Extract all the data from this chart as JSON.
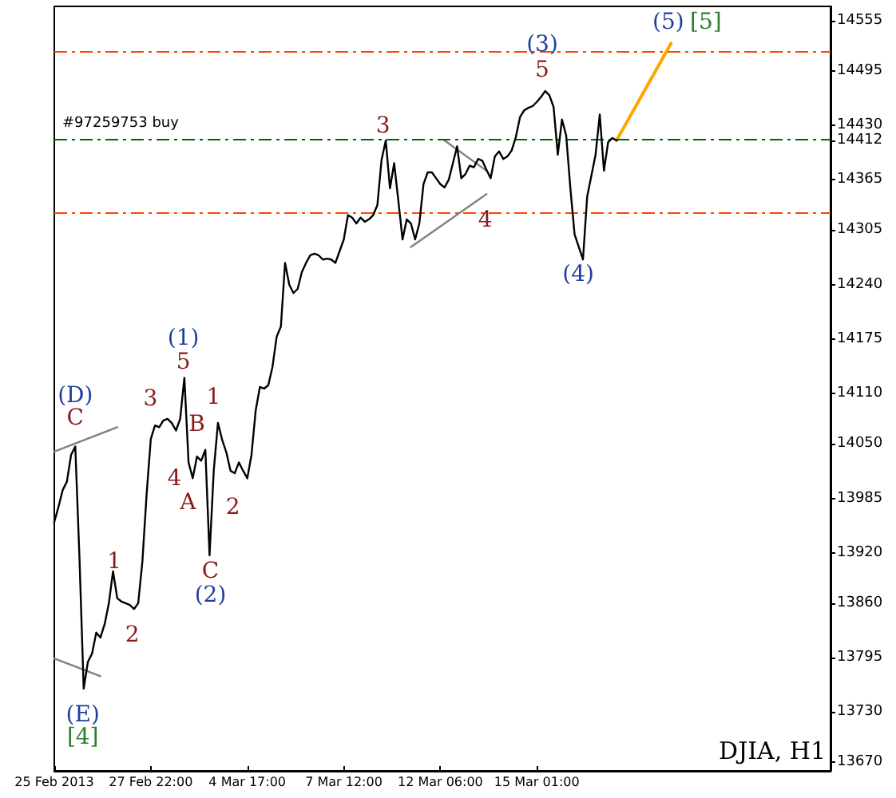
{
  "chart_data": {
    "type": "line",
    "ylim": [
      13660,
      14572
    ],
    "grid": false,
    "marker": "none",
    "categories": [
      "25 Feb 2013",
      null,
      null,
      null,
      null,
      null,
      null,
      null,
      null,
      null,
      null,
      null,
      null,
      null,
      null,
      null,
      null,
      null,
      null,
      null,
      null,
      null,
      null,
      "27 Feb 22:00",
      null,
      null,
      null,
      null,
      null,
      null,
      null,
      null,
      null,
      null,
      null,
      null,
      null,
      null,
      null,
      null,
      null,
      null,
      null,
      null,
      null,
      null,
      "4 Mar 17:00",
      null,
      null,
      null,
      null,
      null,
      null,
      null,
      null,
      null,
      null,
      null,
      null,
      null,
      null,
      null,
      null,
      null,
      null,
      null,
      null,
      null,
      null,
      "7 Mar 12:00",
      null,
      null,
      null,
      null,
      null,
      null,
      null,
      null,
      null,
      null,
      null,
      null,
      null,
      null,
      null,
      null,
      null,
      null,
      null,
      null,
      null,
      null,
      "12 Mar 06:00",
      null,
      null,
      null,
      null,
      null,
      null,
      null,
      null,
      null,
      null,
      null,
      null,
      null,
      null,
      null,
      null,
      null,
      null,
      null,
      null,
      null,
      null,
      "15 Mar 01:00",
      null,
      null,
      null,
      null,
      null,
      null,
      null,
      null,
      null,
      null,
      null,
      null,
      null,
      null,
      null,
      null,
      null,
      null,
      null,
      null,
      null,
      null,
      null,
      null,
      null,
      null,
      null,
      null,
      null,
      null,
      null,
      null,
      null,
      null,
      null,
      null,
      null,
      null,
      null,
      null,
      null,
      null,
      null,
      null,
      null,
      null,
      null,
      null,
      null,
      null,
      null,
      null,
      null,
      null,
      null,
      null,
      null,
      null,
      null,
      null,
      null,
      null,
      null,
      null,
      null,
      null,
      null,
      null,
      null,
      null
    ],
    "yticks": [
      13670,
      13730,
      13795,
      13860,
      13920,
      13985,
      14050,
      14110,
      14175,
      14240,
      14305,
      14365,
      14412,
      14430,
      14495,
      14555
    ],
    "series": [
      {
        "color": "#000000",
        "values": [
          13957,
          13975,
          13995,
          14005,
          14037,
          14047,
          13914,
          13758,
          13790,
          13800,
          13825,
          13819,
          13835,
          13860,
          13898,
          13866,
          13862,
          13860,
          13858,
          13853,
          13860,
          13910,
          13990,
          14056,
          14072,
          14070,
          14078,
          14080,
          14075,
          14066,
          14080,
          14129,
          14028,
          14009,
          14035,
          14030,
          14043,
          13917,
          14018,
          14075,
          14055,
          14040,
          14018,
          14015,
          14028,
          14018,
          14009,
          14037,
          14090,
          14118,
          14116,
          14120,
          14142,
          14178,
          14190,
          14266,
          14240,
          14230,
          14235,
          14255,
          14266,
          14275,
          14277,
          14275,
          14270,
          14271,
          14270,
          14266,
          14280,
          14294,
          14323,
          14320,
          14313,
          14320,
          14315,
          14318,
          14323,
          14335,
          14389,
          14412,
          14355,
          14385,
          14340,
          14294,
          14318,
          14313,
          14294,
          14313,
          14360,
          14374,
          14374,
          14367,
          14360,
          14356,
          14365,
          14385,
          14405,
          14367,
          14372,
          14382,
          14380,
          14390,
          14388,
          14377,
          14367,
          14393,
          14399,
          14390,
          14393,
          14400,
          14416,
          14440,
          14448,
          14451,
          14453,
          14458,
          14464,
          14471,
          14466,
          14452,
          14395,
          14437,
          14418,
          14355,
          14300,
          14285,
          14270,
          14345,
          14370,
          14395,
          14443,
          14376,
          14410,
          14415,
          14412,
          null,
          null,
          null,
          null,
          null,
          null,
          null,
          null,
          null,
          null,
          null,
          null,
          null,
          null,
          null,
          null,
          null,
          null,
          null,
          null,
          null,
          null,
          null,
          null,
          null,
          null,
          null,
          null,
          null,
          null,
          null,
          null,
          null,
          null,
          null,
          null,
          null,
          null,
          null,
          null,
          null,
          null,
          null,
          null,
          null,
          null,
          null,
          null,
          null,
          null,
          null
        ]
      },
      {
        "color": "#ffa500",
        "values": [
          null,
          null,
          null,
          null,
          null,
          null,
          null,
          null,
          null,
          null,
          null,
          null,
          null,
          null,
          null,
          null,
          null,
          null,
          null,
          null,
          null,
          null,
          null,
          null,
          null,
          null,
          null,
          null,
          null,
          null,
          null,
          null,
          null,
          null,
          null,
          null,
          null,
          null,
          null,
          null,
          null,
          null,
          null,
          null,
          null,
          null,
          null,
          null,
          null,
          null,
          null,
          null,
          null,
          null,
          null,
          null,
          null,
          null,
          null,
          null,
          null,
          null,
          null,
          null,
          null,
          null,
          null,
          null,
          null,
          null,
          null,
          null,
          null,
          null,
          null,
          null,
          null,
          null,
          null,
          null,
          null,
          null,
          null,
          null,
          null,
          null,
          null,
          null,
          null,
          null,
          null,
          null,
          null,
          null,
          null,
          null,
          null,
          null,
          null,
          null,
          null,
          null,
          null,
          null,
          null,
          null,
          null,
          null,
          null,
          null,
          null,
          null,
          null,
          null,
          null,
          null,
          null,
          null,
          null,
          null,
          null,
          null,
          null,
          null,
          null,
          null,
          null,
          null,
          null,
          null,
          null,
          null,
          null,
          null,
          14412,
          null,
          null,
          null,
          null,
          null,
          null,
          null,
          null,
          null,
          null,
          null,
          null,
          14528,
          null,
          null,
          null,
          null,
          null,
          null,
          null,
          null,
          null,
          null,
          null,
          null,
          null,
          null,
          null,
          null,
          null,
          null,
          null,
          null,
          null,
          null,
          null,
          null,
          null,
          null,
          null,
          null,
          null,
          null,
          null,
          null,
          null,
          null,
          null,
          null,
          null,
          null
        ]
      },
      {
        "color": "#808080",
        "values": [
          14041,
          null,
          null,
          null,
          null,
          null,
          null,
          null,
          null,
          null,
          null,
          null,
          null,
          null,
          null,
          14070,
          null,
          null,
          null,
          null,
          null,
          null,
          null,
          null,
          null,
          null,
          null,
          null,
          null,
          null,
          null,
          null,
          null,
          null,
          null,
          null,
          null,
          null,
          null,
          null,
          null,
          null,
          null,
          null,
          null,
          null,
          null,
          null,
          null,
          null,
          null,
          null,
          null,
          null,
          null,
          null,
          null,
          null,
          null,
          null,
          null,
          null,
          null,
          null,
          null,
          null,
          null,
          null,
          null,
          null,
          null,
          null,
          null,
          null,
          null,
          null,
          null,
          null,
          null,
          null,
          null,
          null,
          null,
          null,
          null,
          null,
          null,
          null,
          null,
          null,
          null,
          null,
          null,
          null,
          null,
          null,
          null,
          null,
          null,
          null,
          null,
          null,
          null,
          null,
          null,
          null,
          null,
          null,
          null,
          null,
          null,
          null,
          null,
          null,
          null,
          null,
          null,
          null,
          null,
          null,
          null,
          null,
          null,
          null,
          null,
          null,
          null,
          null,
          null,
          null,
          null,
          null,
          null,
          null,
          null,
          null,
          null,
          null,
          null,
          null,
          null,
          null,
          null,
          null,
          null,
          null,
          null,
          null,
          null,
          null,
          null,
          null,
          null,
          null,
          null,
          null,
          null,
          null,
          null,
          null,
          null,
          null,
          null,
          null,
          null,
          null,
          null,
          null,
          null,
          null,
          null,
          null,
          null,
          null,
          null,
          null,
          null,
          null,
          null,
          null,
          null,
          null,
          null,
          null,
          null,
          null
        ]
      },
      {
        "color": "#808080",
        "values": [
          13794,
          null,
          null,
          null,
          null,
          null,
          null,
          null,
          null,
          null,
          null,
          13773,
          null,
          null,
          null,
          null,
          null,
          null,
          null,
          null,
          null,
          null,
          null,
          null,
          null,
          null,
          null,
          null,
          null,
          null,
          null,
          null,
          null,
          null,
          null,
          null,
          null,
          null,
          null,
          null,
          null,
          null,
          null,
          null,
          null,
          null,
          null,
          null,
          null,
          null,
          null,
          null,
          null,
          null,
          null,
          null,
          null,
          null,
          null,
          null,
          null,
          null,
          null,
          null,
          null,
          null,
          null,
          null,
          null,
          null,
          null,
          null,
          null,
          null,
          null,
          null,
          null,
          null,
          null,
          null,
          null,
          null,
          null,
          null,
          null,
          null,
          null,
          null,
          null,
          null,
          null,
          null,
          null,
          null,
          null,
          null,
          null,
          null,
          null,
          null,
          null,
          null,
          null,
          null,
          null,
          null,
          null,
          null,
          null,
          null,
          null,
          null,
          null,
          null,
          null,
          null,
          null,
          null,
          null,
          null,
          null,
          null,
          null,
          null,
          null,
          null,
          null,
          null,
          null,
          null,
          null,
          null,
          null,
          null,
          null,
          null,
          null,
          null,
          null,
          null,
          null,
          null,
          null,
          null,
          null,
          null,
          null,
          null,
          null,
          null,
          null,
          null,
          null,
          null,
          null,
          null,
          null,
          null,
          null,
          null,
          null,
          null,
          null,
          null,
          null,
          null,
          null,
          null,
          null,
          null,
          null,
          null,
          null,
          null,
          null,
          null,
          null,
          null,
          null,
          null,
          null,
          null,
          null,
          null,
          null,
          null
        ]
      },
      {
        "color": "#808080",
        "values": [
          null,
          null,
          null,
          null,
          null,
          null,
          null,
          null,
          null,
          null,
          null,
          null,
          null,
          null,
          null,
          null,
          null,
          null,
          null,
          null,
          null,
          null,
          null,
          null,
          null,
          null,
          null,
          null,
          null,
          null,
          null,
          null,
          null,
          null,
          null,
          null,
          null,
          null,
          null,
          null,
          null,
          null,
          null,
          null,
          null,
          null,
          null,
          null,
          null,
          null,
          null,
          null,
          null,
          null,
          null,
          null,
          null,
          null,
          null,
          null,
          null,
          null,
          null,
          null,
          null,
          null,
          null,
          null,
          null,
          null,
          null,
          null,
          null,
          null,
          null,
          null,
          null,
          null,
          null,
          null,
          null,
          null,
          null,
          null,
          null,
          null,
          null,
          null,
          null,
          null,
          null,
          null,
          null,
          14412,
          null,
          null,
          null,
          null,
          null,
          null,
          null,
          null,
          null,
          14376,
          null,
          null,
          null,
          null,
          null,
          null,
          null,
          null,
          null,
          null,
          null,
          null,
          null,
          null,
          null,
          null,
          null,
          null,
          null,
          null,
          null,
          null,
          null,
          null,
          null,
          null,
          null,
          null,
          null,
          null,
          null,
          null,
          null,
          null,
          null,
          null,
          null,
          null,
          null,
          null,
          null,
          null,
          null,
          null,
          null,
          null,
          null,
          null,
          null,
          null,
          null,
          null,
          null,
          null,
          null,
          null,
          null,
          null,
          null,
          null,
          null,
          null,
          null,
          null,
          null,
          null,
          null,
          null,
          null,
          null,
          null,
          null,
          null,
          null,
          null,
          null,
          null,
          null,
          null,
          null,
          null,
          null
        ]
      },
      {
        "color": "#808080",
        "values": [
          null,
          null,
          null,
          null,
          null,
          null,
          null,
          null,
          null,
          null,
          null,
          null,
          null,
          null,
          null,
          null,
          null,
          null,
          null,
          null,
          null,
          null,
          null,
          null,
          null,
          null,
          null,
          null,
          null,
          null,
          null,
          null,
          null,
          null,
          null,
          null,
          null,
          null,
          null,
          null,
          null,
          null,
          null,
          null,
          null,
          null,
          null,
          null,
          null,
          null,
          null,
          null,
          null,
          null,
          null,
          null,
          null,
          null,
          null,
          null,
          null,
          null,
          null,
          null,
          null,
          null,
          null,
          null,
          null,
          null,
          null,
          null,
          null,
          null,
          null,
          null,
          null,
          null,
          null,
          null,
          null,
          null,
          null,
          null,
          null,
          14285,
          null,
          null,
          null,
          null,
          null,
          null,
          null,
          null,
          null,
          null,
          null,
          null,
          null,
          null,
          null,
          null,
          null,
          14348,
          null,
          null,
          null,
          null,
          null,
          null,
          null,
          null,
          null,
          null,
          null,
          null,
          null,
          null,
          null,
          null,
          null,
          null,
          null,
          null,
          null,
          null,
          null,
          null,
          null,
          null,
          null,
          null,
          null,
          null,
          null,
          null,
          null,
          null,
          null,
          null,
          null,
          null,
          null,
          null,
          null,
          null,
          null,
          null,
          null,
          null,
          null,
          null,
          null,
          null,
          null,
          null,
          null,
          null,
          null,
          null,
          null,
          null,
          null,
          null,
          null,
          null,
          null,
          null,
          null,
          null,
          null,
          null,
          null,
          null,
          null,
          null,
          null,
          null,
          null,
          null,
          null,
          null,
          null,
          null,
          null,
          null
        ]
      }
    ],
    "ref_lines": [
      {
        "axis": "y",
        "value": 14519,
        "color": "#ff4500",
        "line_style": "dashed"
      },
      {
        "axis": "y",
        "value": 14325,
        "color": "#ff4500",
        "line_style": "dashed"
      },
      {
        "axis": "y",
        "value": 14414,
        "label": "#97259753 buy",
        "color": "#006400",
        "line_style": "dashed"
      }
    ],
    "annotations": [
      "(D)",
      "C",
      "(E)",
      "[4]",
      "1",
      "2",
      "3",
      "5",
      "(1)",
      "4",
      "A",
      "B",
      "1",
      "2",
      "C",
      "(2)",
      "3",
      "4",
      "(3)",
      "5",
      "(4)",
      "(5)",
      "[5]",
      "DJIA, H1"
    ]
  }
}
